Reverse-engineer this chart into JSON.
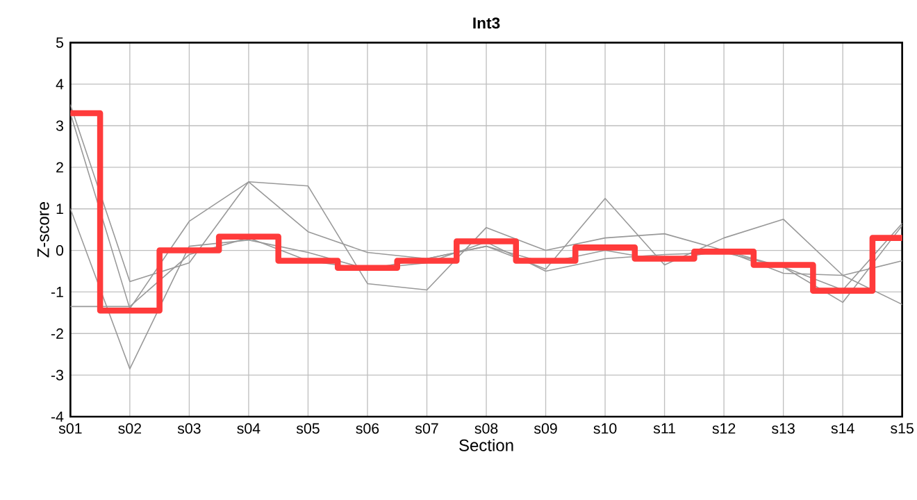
{
  "chart_data": {
    "type": "line",
    "title": "Int3",
    "xlabel": "Section",
    "ylabel": "Z-score",
    "categories": [
      "s01",
      "s02",
      "s03",
      "s04",
      "s05",
      "s06",
      "s07",
      "s08",
      "s09",
      "s10",
      "s11",
      "s12",
      "s13",
      "s14",
      "s15"
    ],
    "ylim": [
      -4,
      5
    ],
    "yticks": [
      -4,
      -3,
      -2,
      -1,
      0,
      1,
      2,
      3,
      4,
      5
    ],
    "grid": true,
    "marker": "none",
    "line_style": "solid",
    "series": [
      {
        "color": "#999999",
        "values": [
          3.5,
          -0.75,
          -0.3,
          1.65,
          0.45,
          -0.05,
          -0.2,
          0.1,
          -0.45,
          1.25,
          -0.35,
          0.3,
          0.75,
          -0.6,
          -1.3
        ]
      },
      {
        "color": "#999999",
        "values": [
          3.3,
          -1.4,
          0.7,
          1.65,
          1.55,
          -0.8,
          -0.95,
          0.55,
          0.0,
          0.3,
          0.4,
          0.0,
          -0.55,
          -0.6,
          -0.25
        ]
      },
      {
        "color": "#999999",
        "values": [
          1.0,
          -2.85,
          0.1,
          0.25,
          -0.05,
          -0.45,
          -0.3,
          0.2,
          -0.5,
          -0.2,
          -0.1,
          -0.05,
          -0.4,
          -1.25,
          0.6
        ]
      },
      {
        "color": "#999999",
        "values": [
          -1.35,
          -1.35,
          -0.1,
          0.3,
          -0.25,
          -0.45,
          -0.2,
          0.1,
          -0.3,
          0.0,
          -0.25,
          0.0,
          -0.4,
          -0.95,
          0.65
        ]
      },
      {
        "type": "step",
        "color": "#ff3b3b",
        "values": [
          3.3,
          -1.45,
          0.0,
          0.33,
          -0.25,
          -0.42,
          -0.25,
          0.22,
          -0.25,
          0.07,
          -0.2,
          -0.03,
          -0.35,
          -0.97,
          0.3
        ]
      }
    ]
  }
}
